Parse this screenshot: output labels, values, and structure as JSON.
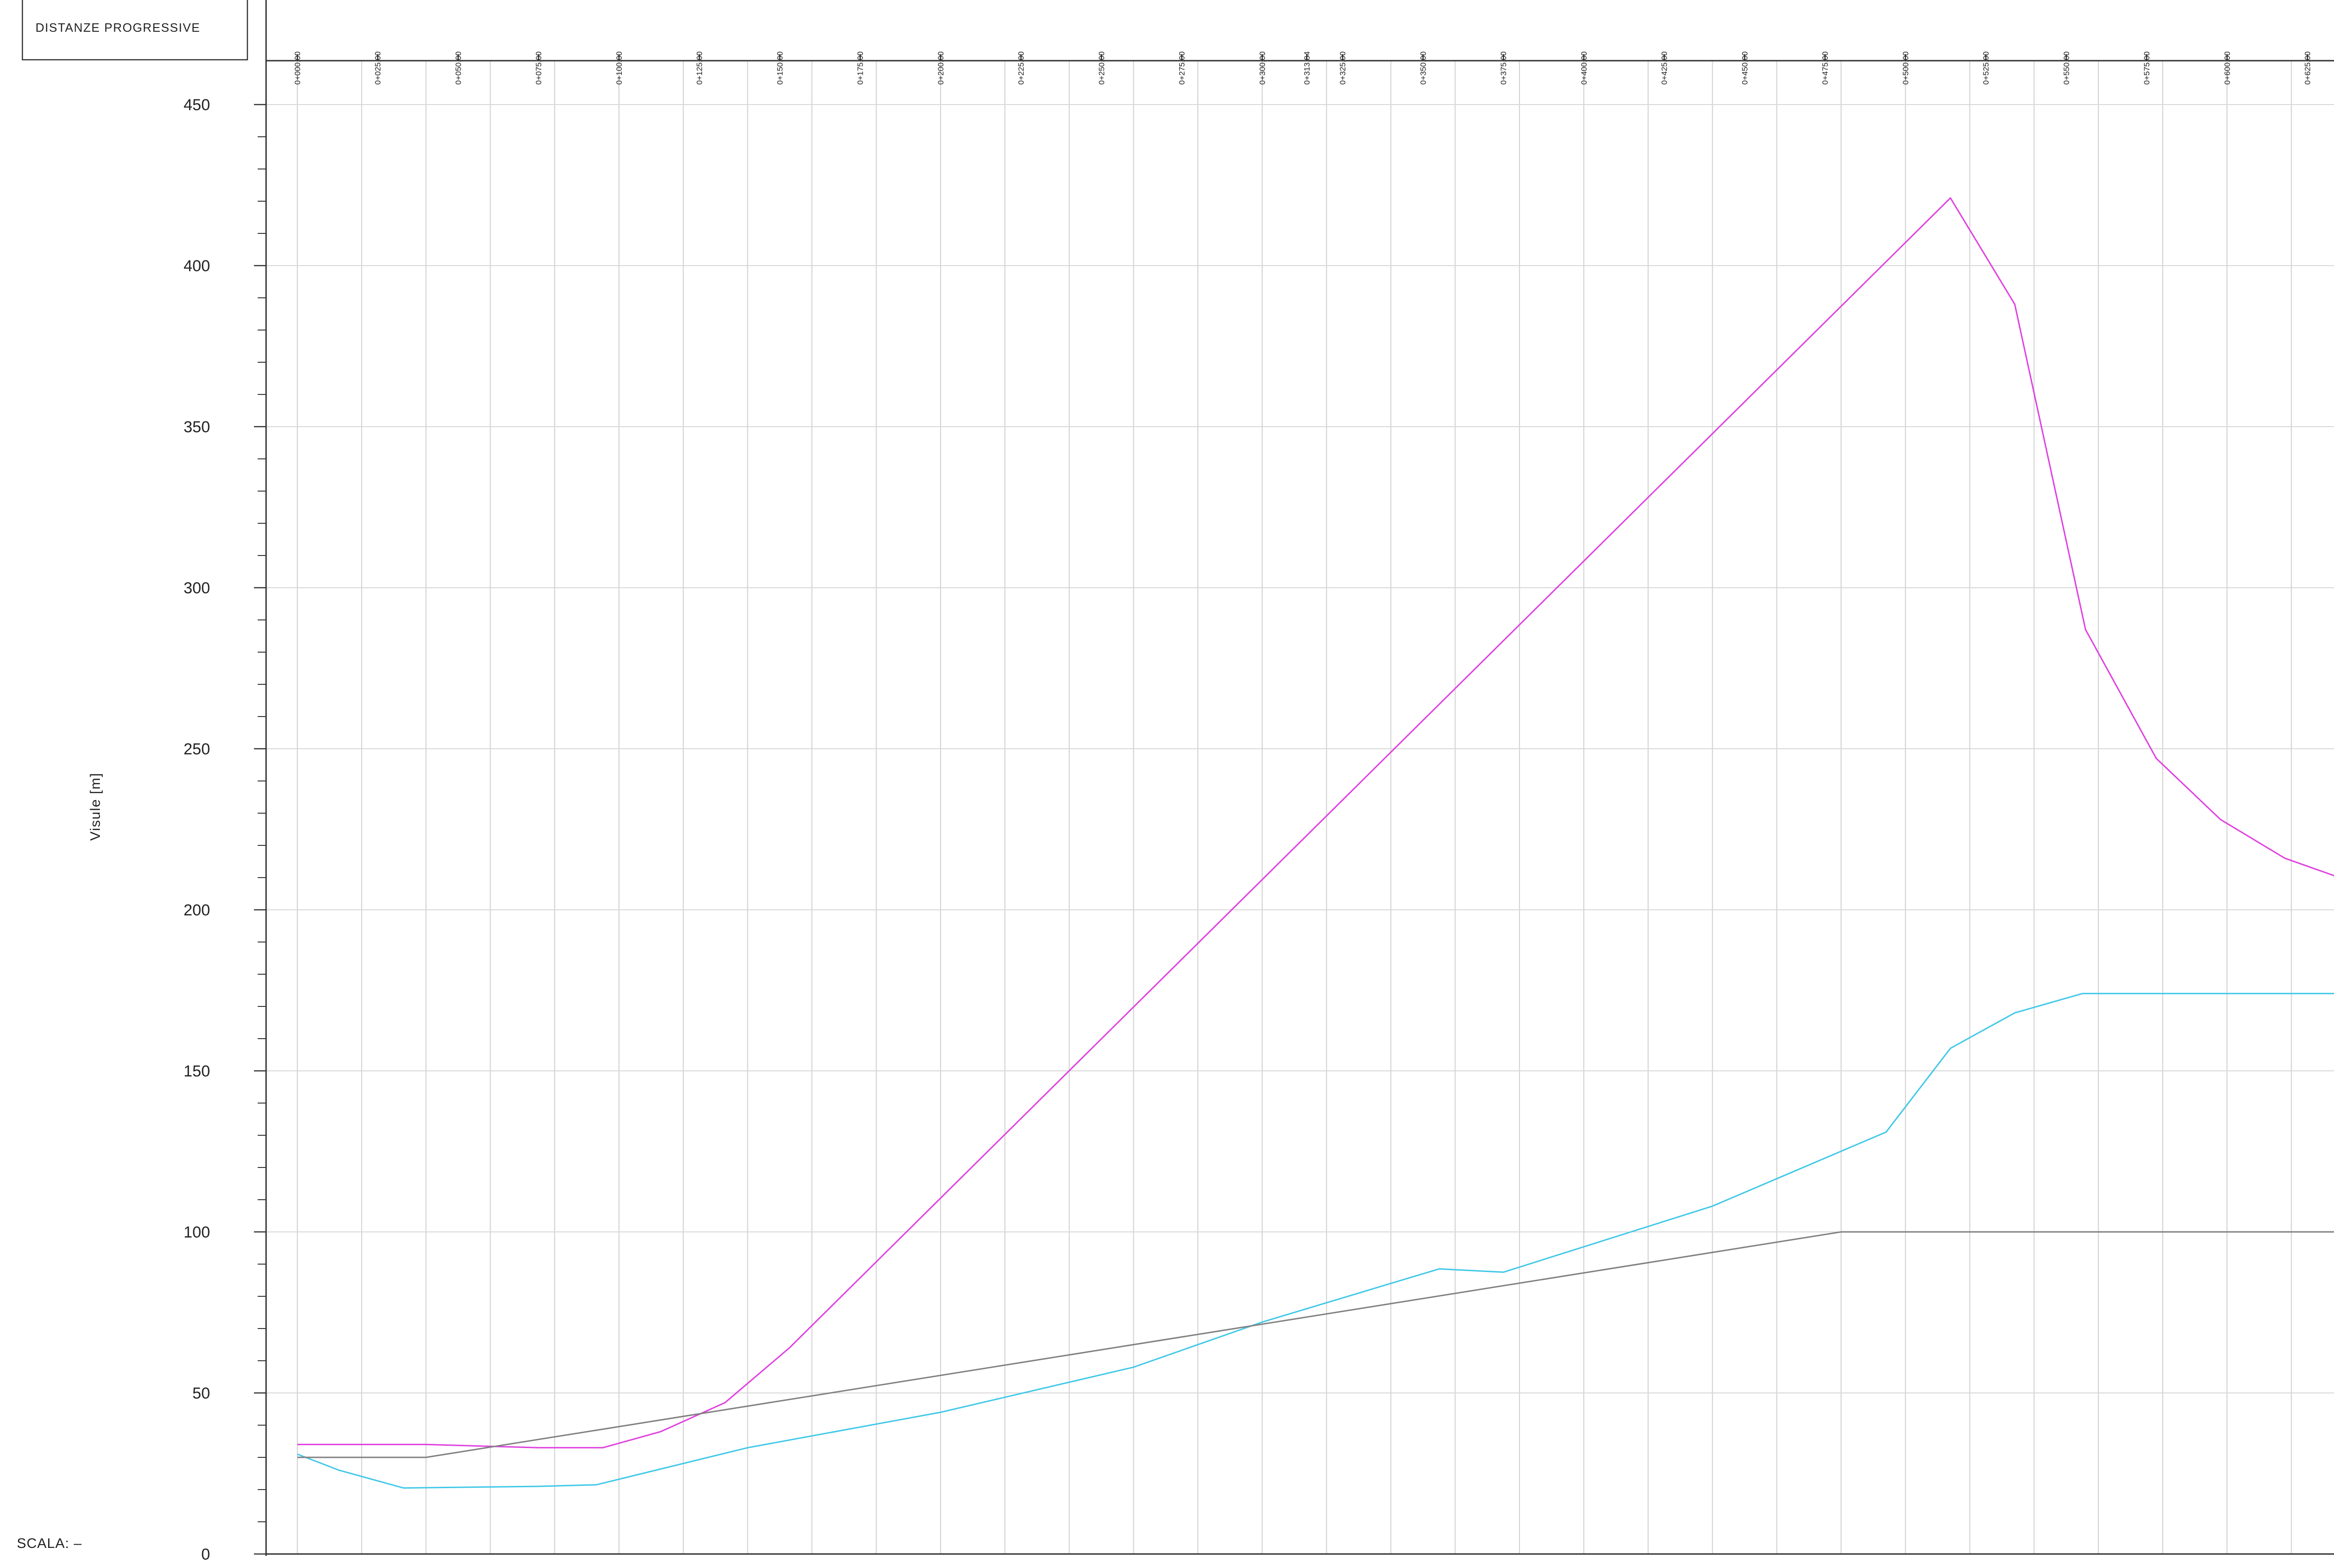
{
  "header": {
    "title": "DISTANZE  PROGRESSIVE"
  },
  "footer": {
    "scale_label": "SCALA:  –"
  },
  "chart_data": {
    "type": "line",
    "title": "",
    "xlabel": "",
    "ylabel": "Visule  [m]",
    "ylim": [
      0,
      450
    ],
    "xlim": [
      0,
      635
    ],
    "y_ticks": [
      0,
      50,
      100,
      150,
      200,
      250,
      300,
      350,
      400,
      450
    ],
    "grid": true,
    "x_tick_positions": [
      0,
      25,
      50,
      75,
      100,
      125,
      150,
      175,
      200,
      225,
      250,
      275,
      300,
      313.84,
      325,
      350,
      375,
      400,
      425,
      450,
      475,
      500,
      525,
      550,
      575,
      600,
      625
    ],
    "x_tick_labels": [
      "0+000.00",
      "0+025.00",
      "0+050.00",
      "0+075.00",
      "0+100.00",
      "0+125.00",
      "0+150.00",
      "0+175.00",
      "0+200.00",
      "0+225.00",
      "0+250.00",
      "0+275.00",
      "0+300.00",
      "0+313.84",
      "0+325.00",
      "0+350.00",
      "0+375.00",
      "0+400.00",
      "0+425.00",
      "0+450.00",
      "0+475.00",
      "0+500.00",
      "0+525.00",
      "0+550.00",
      "0+575.00",
      "0+600.00",
      "0+625.00"
    ],
    "vertical_gridlines_x": [
      0,
      20,
      40,
      60,
      80,
      100,
      120,
      140,
      160,
      180,
      200,
      220,
      240,
      260,
      280,
      300,
      320,
      340,
      360,
      380,
      400,
      420,
      440,
      460,
      480,
      500,
      520,
      540,
      560,
      580,
      600,
      620
    ],
    "series": [
      {
        "color": "#e040e0",
        "x": [
          0,
          40,
          75,
          95,
          113,
          133,
          153,
          514,
          534,
          556,
          578,
          598,
          618,
          635
        ],
        "y": [
          34,
          34,
          33,
          33,
          38,
          47,
          64,
          421,
          388,
          287,
          247,
          228,
          216,
          210
        ]
      },
      {
        "color": "#40c8e8",
        "x": [
          0,
          13,
          33,
          75,
          93,
          140,
          200,
          260,
          300,
          355,
          375,
          440,
          494,
          514,
          534,
          555,
          635
        ],
        "y": [
          31,
          26,
          20.5,
          21,
          21.5,
          33,
          44,
          58,
          72,
          88.5,
          87.5,
          108,
          131,
          157,
          168,
          174,
          174
        ]
      },
      {
        "color": "#808080",
        "x": [
          0,
          40,
          480,
          635
        ],
        "y": [
          30,
          30,
          100,
          100
        ]
      }
    ]
  }
}
